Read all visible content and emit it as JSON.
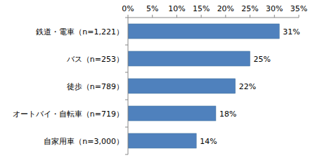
{
  "chart_data": {
    "type": "bar",
    "orientation": "horizontal",
    "categories": [
      "鉄道・電車（n=1,221）",
      "バス（n=253）",
      "徒歩（n=789）",
      "オートバイ・自転車（n=719）",
      "自家用車（n=3,000）"
    ],
    "values": [
      31,
      25,
      22,
      18,
      14
    ],
    "value_labels": [
      "31%",
      "25%",
      "22%",
      "18%",
      "14%"
    ],
    "color": "#4f81bd",
    "xlim": [
      0,
      35
    ],
    "xticks": [
      {
        "value": 0,
        "label": "0%"
      },
      {
        "value": 5,
        "label": "5%"
      },
      {
        "value": 10,
        "label": "10%"
      },
      {
        "value": 15,
        "label": "15%"
      },
      {
        "value": 20,
        "label": "20%"
      },
      {
        "value": 25,
        "label": "25%"
      },
      {
        "value": 30,
        "label": "30%"
      },
      {
        "value": 35,
        "label": "35%"
      }
    ],
    "grid": false,
    "data_labels": true
  }
}
